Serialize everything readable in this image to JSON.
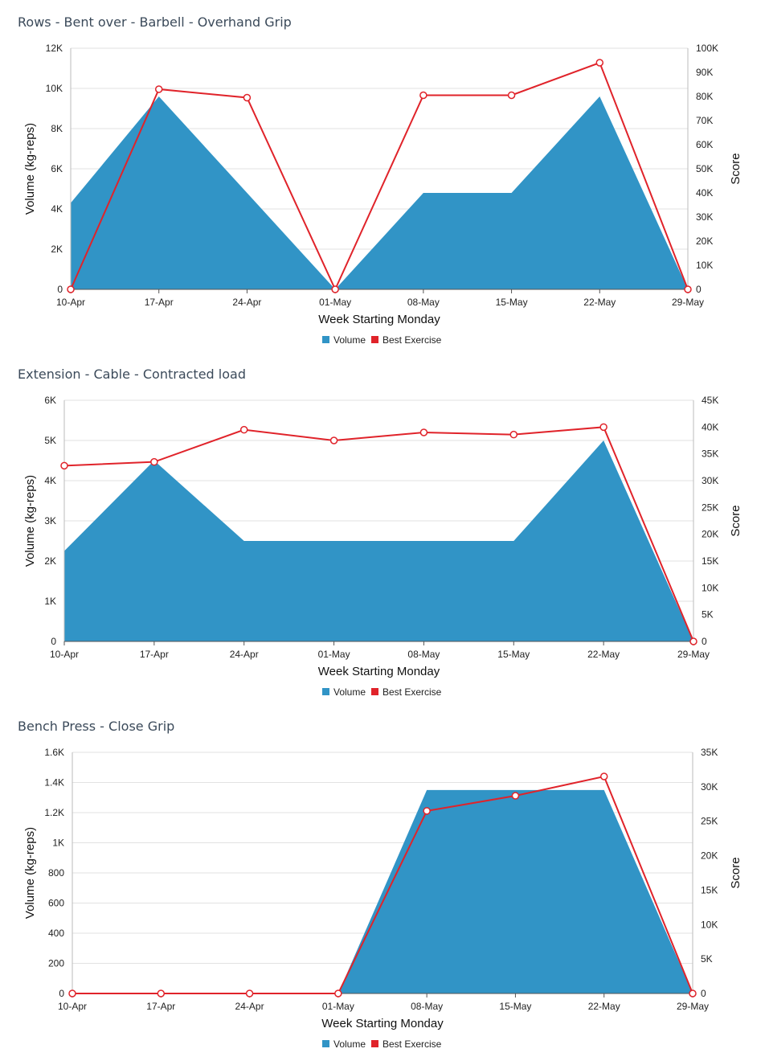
{
  "chart_data": [
    {
      "type": "area",
      "title": "Rows - Bent over - Barbell - Overhand Grip",
      "categories": [
        "10-Apr",
        "17-Apr",
        "24-Apr",
        "01-May",
        "08-May",
        "15-May",
        "22-May",
        "29-May"
      ],
      "xlabel": "Week Starting Monday",
      "ylabel": "Volume (kg-reps)",
      "y2label": "Score",
      "ylim": [
        0,
        12000
      ],
      "y2lim": [
        0,
        100000
      ],
      "yticks": [
        "0",
        "2K",
        "4K",
        "6K",
        "8K",
        "10K",
        "12K"
      ],
      "y2ticks": [
        "0",
        "10K",
        "20K",
        "30K",
        "40K",
        "50K",
        "60K",
        "70K",
        "80K",
        "90K",
        "100K"
      ],
      "grid": true,
      "legend": "bottom-center",
      "series": [
        {
          "name": "Volume",
          "type": "area",
          "axis": "left",
          "color": "#3194c6",
          "values": [
            4300,
            9600,
            4800,
            0,
            4800,
            4800,
            9600,
            0
          ]
        },
        {
          "name": "Best Exercise",
          "type": "line",
          "axis": "right",
          "color": "#e0232a",
          "values": [
            0,
            83000,
            79500,
            0,
            80500,
            80500,
            94000,
            0
          ]
        }
      ]
    },
    {
      "type": "area",
      "title": "Extension - Cable - Contracted load",
      "categories": [
        "10-Apr",
        "17-Apr",
        "24-Apr",
        "01-May",
        "08-May",
        "15-May",
        "22-May",
        "29-May"
      ],
      "xlabel": "Week Starting Monday",
      "ylabel": "Volume (kg-reps)",
      "y2label": "Score",
      "ylim": [
        0,
        6000
      ],
      "y2lim": [
        0,
        45000
      ],
      "yticks": [
        "0",
        "1K",
        "2K",
        "3K",
        "4K",
        "5K",
        "6K"
      ],
      "y2ticks": [
        "0",
        "5K",
        "10K",
        "15K",
        "20K",
        "25K",
        "30K",
        "35K",
        "40K",
        "45K"
      ],
      "grid": true,
      "legend": "bottom-center",
      "series": [
        {
          "name": "Volume",
          "type": "area",
          "axis": "left",
          "color": "#3194c6",
          "values": [
            2250,
            4500,
            2500,
            2500,
            2500,
            2500,
            5000,
            0
          ]
        },
        {
          "name": "Best Exercise",
          "type": "line",
          "axis": "right",
          "color": "#e0232a",
          "values": [
            32800,
            33500,
            39500,
            37500,
            39000,
            38600,
            40000,
            0
          ]
        }
      ]
    },
    {
      "type": "area",
      "title": "Bench Press - Close Grip",
      "categories": [
        "10-Apr",
        "17-Apr",
        "24-Apr",
        "01-May",
        "08-May",
        "15-May",
        "22-May",
        "29-May"
      ],
      "xlabel": "Week Starting Monday",
      "ylabel": "Volume (kg-reps)",
      "y2label": "Score",
      "ylim": [
        0,
        1600
      ],
      "y2lim": [
        0,
        35000
      ],
      "yticks": [
        "0",
        "200",
        "400",
        "600",
        "800",
        "1K",
        "1.2K",
        "1.4K",
        "1.6K"
      ],
      "y2ticks": [
        "0",
        "5K",
        "10K",
        "15K",
        "20K",
        "25K",
        "30K",
        "35K"
      ],
      "grid": true,
      "legend": "bottom-center",
      "series": [
        {
          "name": "Volume",
          "type": "area",
          "axis": "left",
          "color": "#3194c6",
          "values": [
            0,
            0,
            0,
            0,
            1350,
            1350,
            1350,
            0
          ]
        },
        {
          "name": "Best Exercise",
          "type": "line",
          "axis": "right",
          "color": "#e0232a",
          "values": [
            0,
            0,
            0,
            0,
            26500,
            28700,
            31500,
            0
          ]
        }
      ]
    }
  ]
}
